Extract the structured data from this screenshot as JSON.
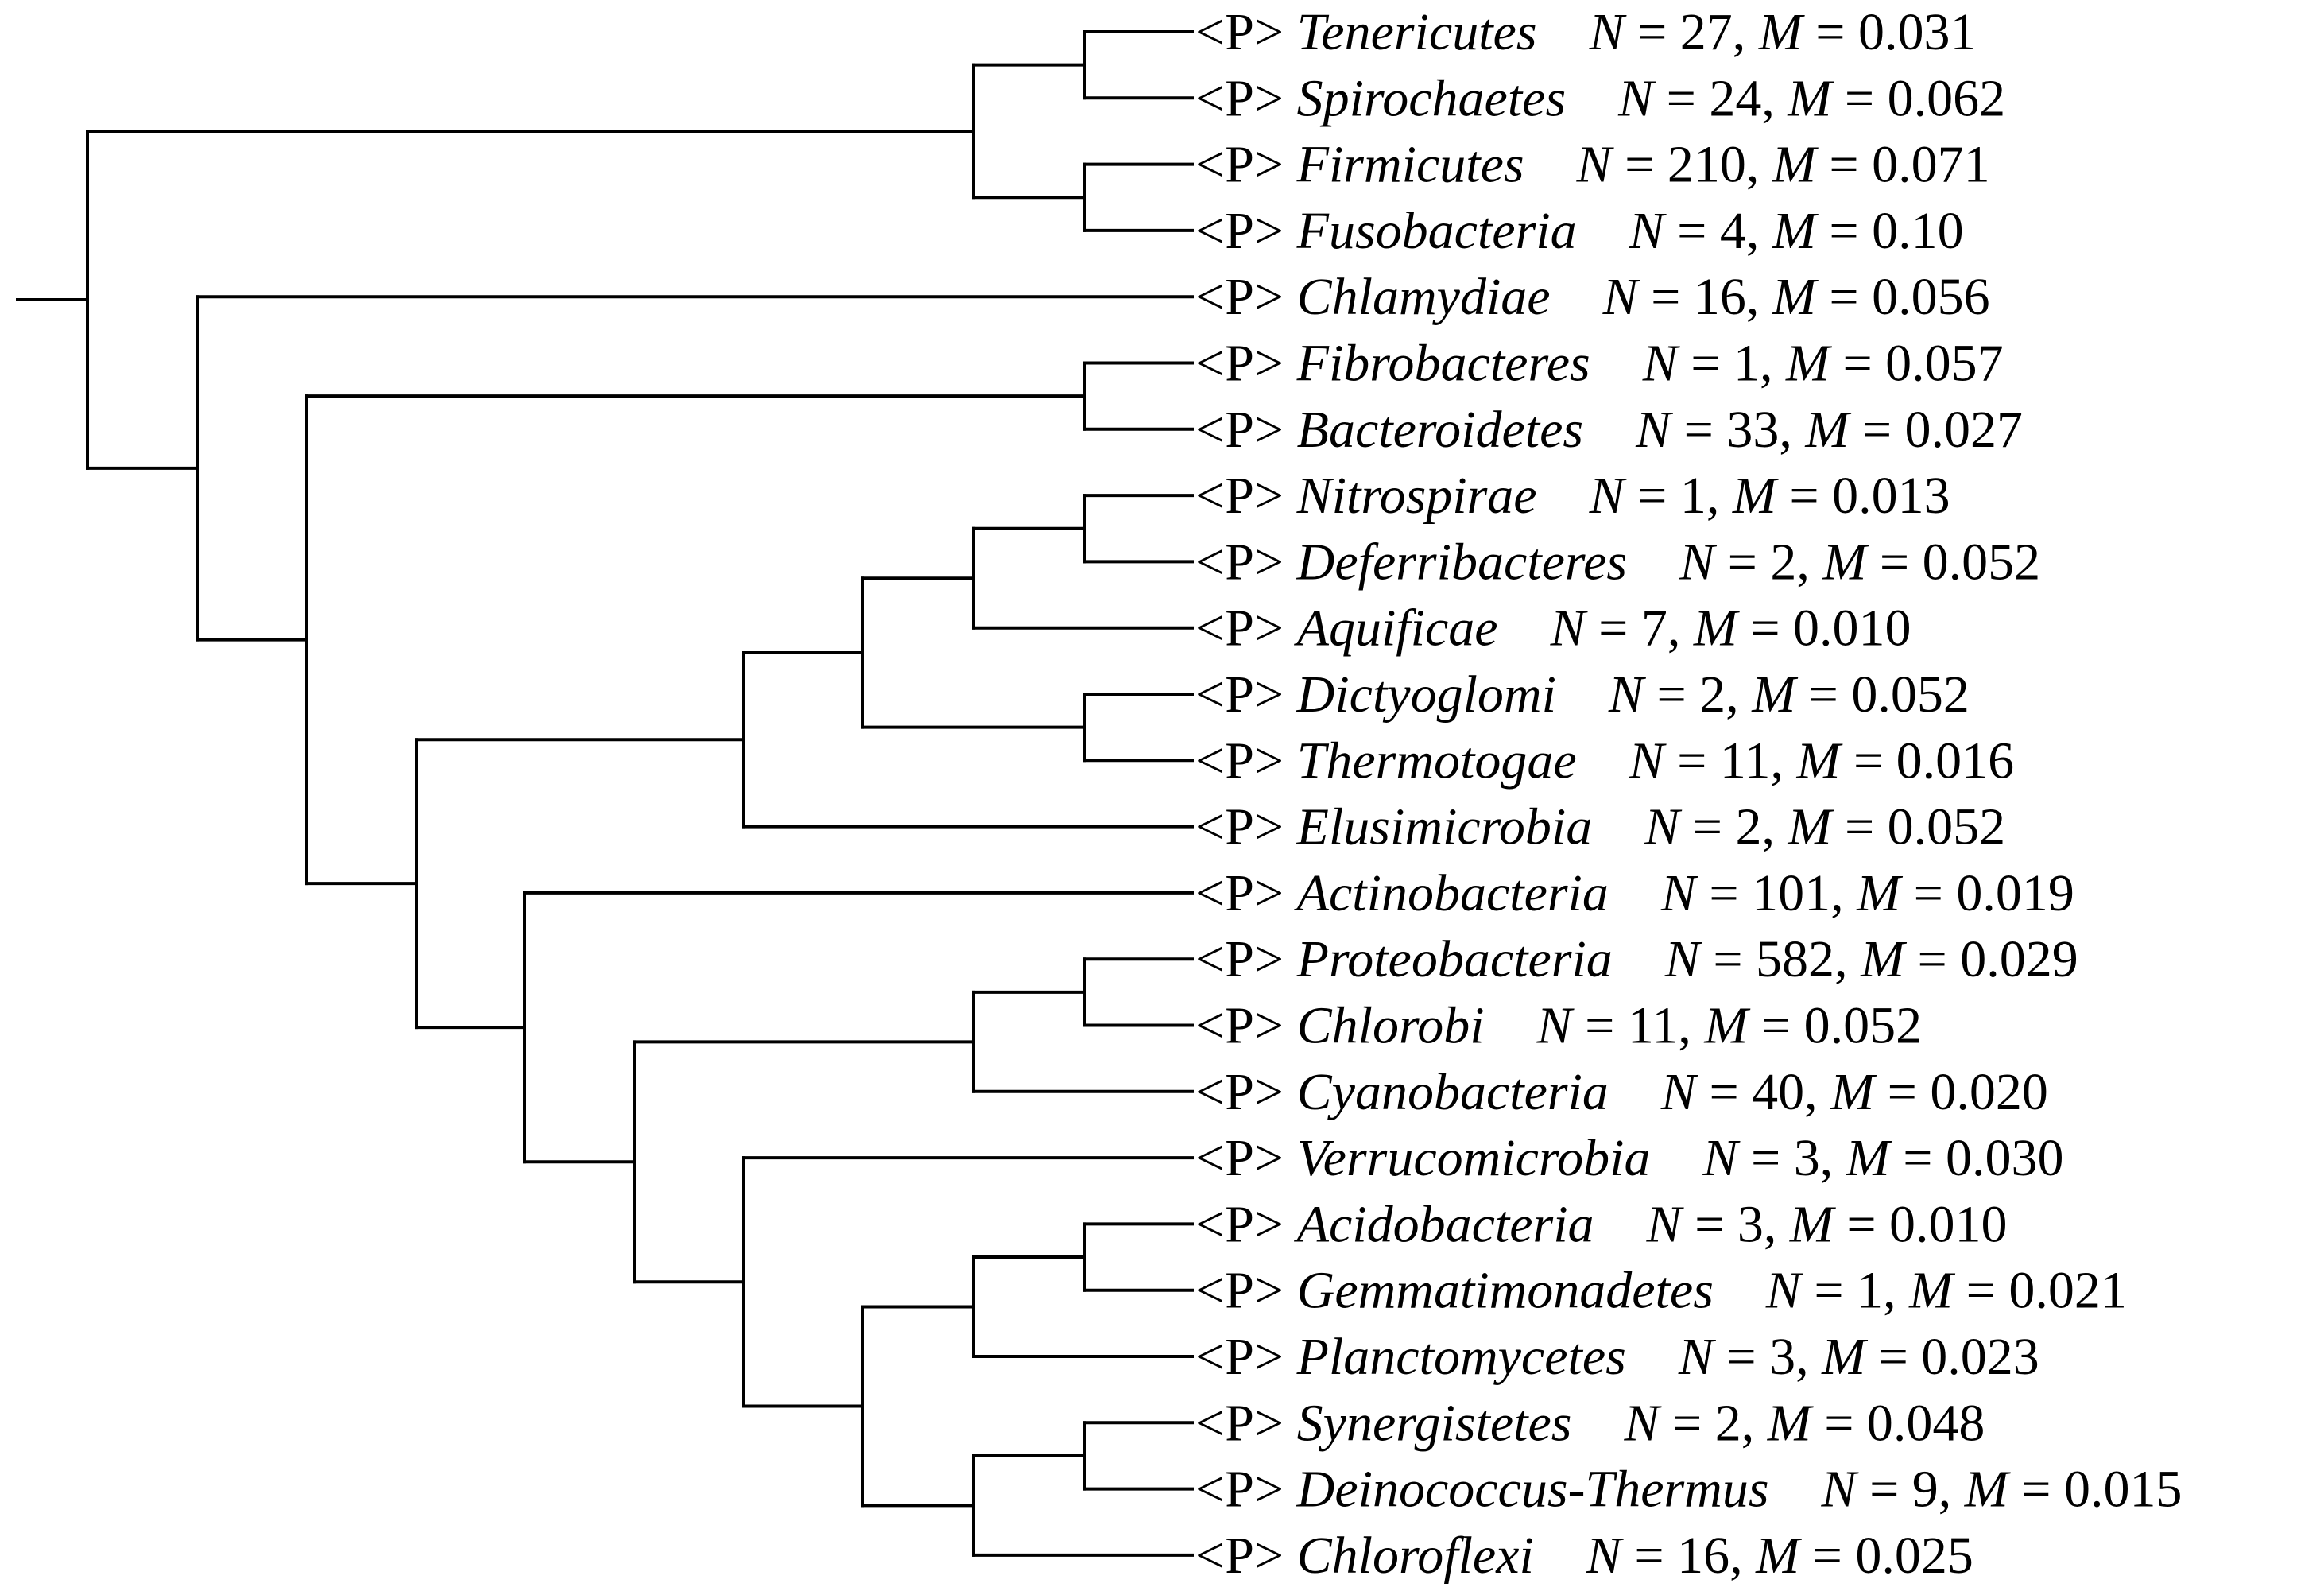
{
  "tree": {
    "rank_marker": "<P>",
    "n_label": "N",
    "m_label": "M",
    "leaves": [
      {
        "name": "Tenericutes",
        "N": "27",
        "M": "0.031"
      },
      {
        "name": "Spirochaetes",
        "N": "24",
        "M": "0.062"
      },
      {
        "name": "Firmicutes",
        "N": "210",
        "M": "0.071"
      },
      {
        "name": "Fusobacteria",
        "N": "4",
        "M": "0.10"
      },
      {
        "name": "Chlamydiae",
        "N": "16",
        "M": "0.056"
      },
      {
        "name": "Fibrobacteres",
        "N": "1",
        "M": "0.057"
      },
      {
        "name": "Bacteroidetes",
        "N": "33",
        "M": "0.027"
      },
      {
        "name": "Nitrospirae",
        "N": "1",
        "M": "0.013"
      },
      {
        "name": "Deferribacteres",
        "N": "2",
        "M": "0.052"
      },
      {
        "name": "Aquificae",
        "N": "7",
        "M": "0.010"
      },
      {
        "name": "Dictyoglomi",
        "N": "2",
        "M": "0.052"
      },
      {
        "name": "Thermotogae",
        "N": "11",
        "M": "0.016"
      },
      {
        "name": "Elusimicrobia",
        "N": "2",
        "M": "0.052"
      },
      {
        "name": "Actinobacteria",
        "N": "101",
        "M": "0.019"
      },
      {
        "name": "Proteobacteria",
        "N": "582",
        "M": "0.029"
      },
      {
        "name": "Chlorobi",
        "N": "11",
        "M": "0.052"
      },
      {
        "name": "Cyanobacteria",
        "N": "40",
        "M": "0.020"
      },
      {
        "name": "Verrucomicrobia",
        "N": "3",
        "M": "0.030"
      },
      {
        "name": "Acidobacteria",
        "N": "3",
        "M": "0.010"
      },
      {
        "name": "Gemmatimonadetes",
        "N": "1",
        "M": "0.021"
      },
      {
        "name": "Planctomycetes",
        "N": "3",
        "M": "0.023"
      },
      {
        "name": "Synergistetes",
        "N": "2",
        "M": "0.048"
      },
      {
        "name": "Deinococcus-Thermus",
        "N": "9",
        "M": "0.015"
      },
      {
        "name": "Chloroflexi",
        "N": "16",
        "M": "0.025"
      }
    ],
    "topology": [
      [
        [
          [
            0,
            1
          ],
          [
            2,
            3
          ]
        ],
        [
          4,
          [
            [
              5,
              6
            ],
            [
              [
                [
                  [
                    [
                      7,
                      8
                    ],
                    9
                  ],
                  [
                    10,
                    11
                  ]
                ],
                12
              ],
              [
                13,
                [
                  [
                    [
                      14,
                      15
                    ],
                    16
                  ],
                  [
                    17,
                    [
                      [
                        [
                          18,
                          19
                        ],
                        20
                      ],
                      [
                        [
                          21,
                          22
                        ],
                        23
                      ]
                    ]
                  ]
                ]
              ]
            ]
          ]
        ]
      ]
    ]
  }
}
